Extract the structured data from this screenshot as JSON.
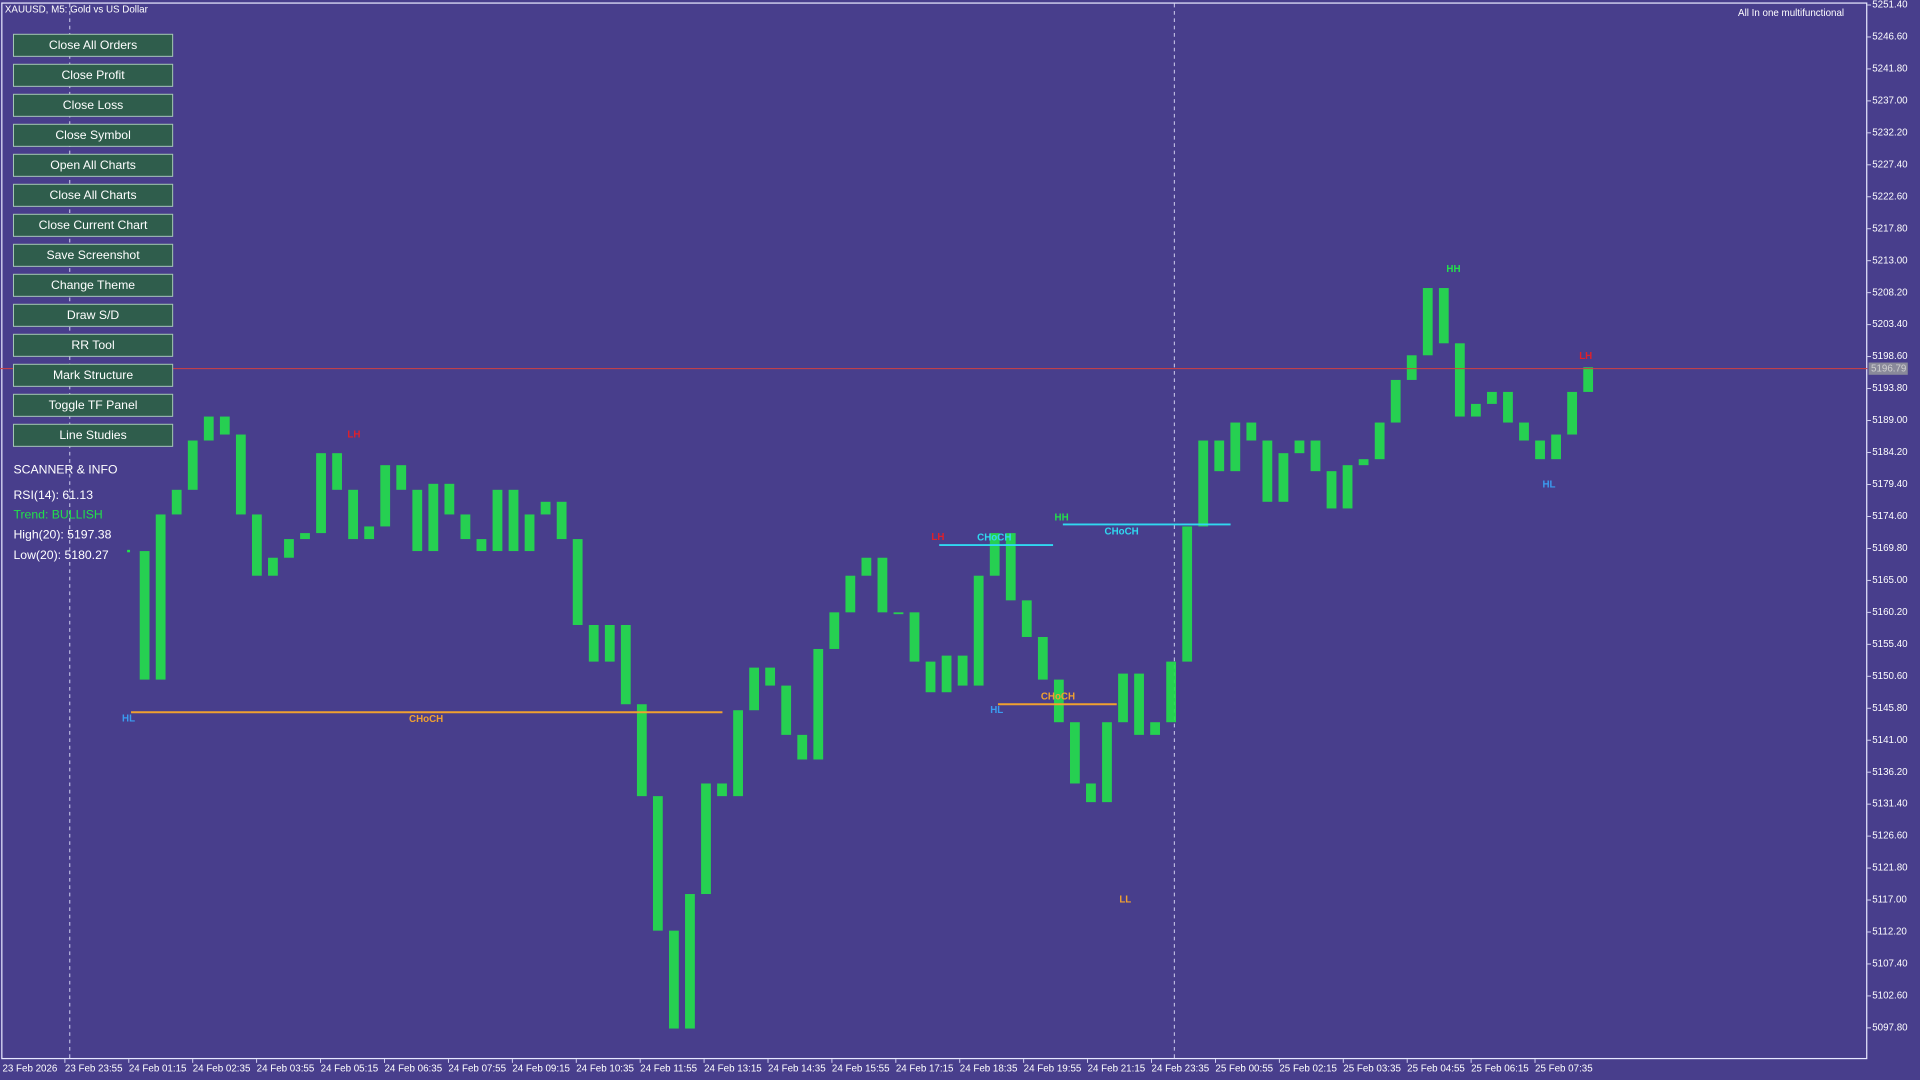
{
  "header": {
    "symbol_title": "XAUUSD, M5:  Gold vs US Dollar",
    "indicator": "All In one multifunctional"
  },
  "buttons": [
    "Close All Orders",
    "Close Profit",
    "Close Loss",
    "Close Symbol",
    "Open All Charts",
    "Close All Charts",
    "Close Current Chart",
    "Save Screenshot",
    "Change Theme",
    "Draw S/D",
    "RR Tool",
    "Mark Structure",
    "Toggle TF Panel",
    "Line Studies"
  ],
  "scanner": {
    "title": "SCANNER & INFO",
    "rsi": "RSI(14): 61.13",
    "trend": "Trend: BULLISH",
    "high": "High(20): 5197.38",
    "low": "Low(20): 5180.27"
  },
  "chart_data": {
    "type": "price",
    "ylim": [
      5093.1,
      5251.6
    ],
    "yticks": [
      {
        "value": 5251.4,
        "label": "5251.40"
      },
      {
        "value": 5246.6,
        "label": "5246.60"
      },
      {
        "value": 5241.8,
        "label": "5241.80"
      },
      {
        "value": 5237.0,
        "label": "5237.00"
      },
      {
        "value": 5232.2,
        "label": "5232.20"
      },
      {
        "value": 5227.4,
        "label": "5227.40"
      },
      {
        "value": 5222.6,
        "label": "5222.60"
      },
      {
        "value": 5217.8,
        "label": "5217.80"
      },
      {
        "value": 5213.0,
        "label": "5213.00"
      },
      {
        "value": 5208.2,
        "label": "5208.20"
      },
      {
        "value": 5203.4,
        "label": "5203.40"
      },
      {
        "value": 5198.6,
        "label": "5198.60"
      },
      {
        "value": 5193.8,
        "label": "5193.80"
      },
      {
        "value": 5189.0,
        "label": "5189.00"
      },
      {
        "value": 5184.2,
        "label": "5184.20"
      },
      {
        "value": 5179.4,
        "label": "5179.40"
      },
      {
        "value": 5174.6,
        "label": "5174.60"
      },
      {
        "value": 5169.8,
        "label": "5169.80"
      },
      {
        "value": 5165.0,
        "label": "5165.00"
      },
      {
        "value": 5160.2,
        "label": "5160.20"
      },
      {
        "value": 5155.4,
        "label": "5155.40"
      },
      {
        "value": 5150.6,
        "label": "5150.60"
      },
      {
        "value": 5145.8,
        "label": "5145.80"
      },
      {
        "value": 5141.0,
        "label": "5141.00"
      },
      {
        "value": 5136.2,
        "label": "5136.20"
      },
      {
        "value": 5131.4,
        "label": "5131.40"
      },
      {
        "value": 5126.6,
        "label": "5126.60"
      },
      {
        "value": 5121.8,
        "label": "5121.80"
      },
      {
        "value": 5117.0,
        "label": "5117.00"
      },
      {
        "value": 5112.2,
        "label": "5112.20"
      },
      {
        "value": 5107.4,
        "label": "5107.40"
      },
      {
        "value": 5102.6,
        "label": "5102.60"
      },
      {
        "value": 5097.8,
        "label": "5097.80"
      }
    ],
    "x_labels": [
      "23 Feb 2026",
      "23 Feb 23:55",
      "24 Feb 01:15",
      "24 Feb 02:35",
      "24 Feb 03:55",
      "24 Feb 05:15",
      "24 Feb 06:35",
      "24 Feb 07:55",
      "24 Feb 09:15",
      "24 Feb 10:35",
      "24 Feb 11:55",
      "24 Feb 13:15",
      "24 Feb 14:35",
      "24 Feb 15:55",
      "24 Feb 17:15",
      "24 Feb 18:35",
      "24 Feb 19:55",
      "24 Feb 21:15",
      "24 Feb 23:35",
      "25 Feb 00:55",
      "25 Feb 02:15",
      "25 Feb 03:35",
      "25 Feb 04:55",
      "25 Feb 06:15",
      "25 Feb 07:35"
    ],
    "color": "#22e04a",
    "values": [
      5169.4,
      5150.1,
      5174.9,
      5178.6,
      5186.0,
      5189.6,
      5186.9,
      5174.9,
      5165.7,
      5168.4,
      5171.2,
      5172.1,
      5184.1,
      5178.6,
      5171.2,
      5173.1,
      5182.3,
      5178.6,
      5169.4,
      5179.5,
      5174.9,
      5171.2,
      5169.4,
      5178.6,
      5169.4,
      5174.9,
      5176.8,
      5171.2,
      5158.3,
      5152.8,
      5158.3,
      5146.4,
      5132.6,
      5112.4,
      5097.7,
      5117.9,
      5134.5,
      5132.6,
      5145.5,
      5151.9,
      5149.2,
      5141.8,
      5138.1,
      5154.7,
      5160.2,
      5165.7,
      5168.4,
      5160.2,
      5160.2,
      5152.8,
      5148.2,
      5153.7,
      5149.2,
      5165.7,
      5172.1,
      5162.0,
      5156.5,
      5150.1,
      5143.7,
      5134.5,
      5131.7,
      5143.7,
      5151.0,
      5141.8,
      5143.7,
      5152.8,
      5173.1,
      5186.0,
      5181.4,
      5188.7,
      5186.0,
      5176.8,
      5184.1,
      5186.0,
      5181.4,
      5175.8,
      5182.3,
      5183.2,
      5188.7,
      5195.1,
      5198.8,
      5208.9,
      5200.6,
      5189.6,
      5191.5,
      5193.3,
      5188.7,
      5186.0,
      5183.2,
      5186.9,
      5193.3,
      5197.0
    ],
    "bid": {
      "value": 5196.79,
      "label": "5196.79",
      "color": "#d04040"
    },
    "structure_lines": [
      {
        "label": "CHoCH",
        "price": 5145.2,
        "color": "#f0a030"
      },
      {
        "label": "CHoCH",
        "price": 5170.3,
        "color": "#30d8f0"
      },
      {
        "label": "CHoCH",
        "price": 5173.4,
        "color": "#30d8f0"
      },
      {
        "label": "CHoCH",
        "price": 5146.4,
        "color": "#f0a030"
      }
    ],
    "structure_points": [
      {
        "label": "HL",
        "color": "#3a9cf0"
      },
      {
        "label": "LH",
        "color": "#e0202a"
      },
      {
        "label": "LH",
        "color": "#e0202a"
      },
      {
        "label": "HH",
        "color": "#22e04a"
      },
      {
        "label": "HL",
        "color": "#3a9cf0"
      },
      {
        "label": "LL",
        "color": "#f0a030"
      },
      {
        "label": "HH",
        "color": "#22e04a"
      },
      {
        "label": "LH",
        "color": "#e0202a"
      },
      {
        "label": "HL",
        "color": "#3a9cf0"
      }
    ]
  }
}
